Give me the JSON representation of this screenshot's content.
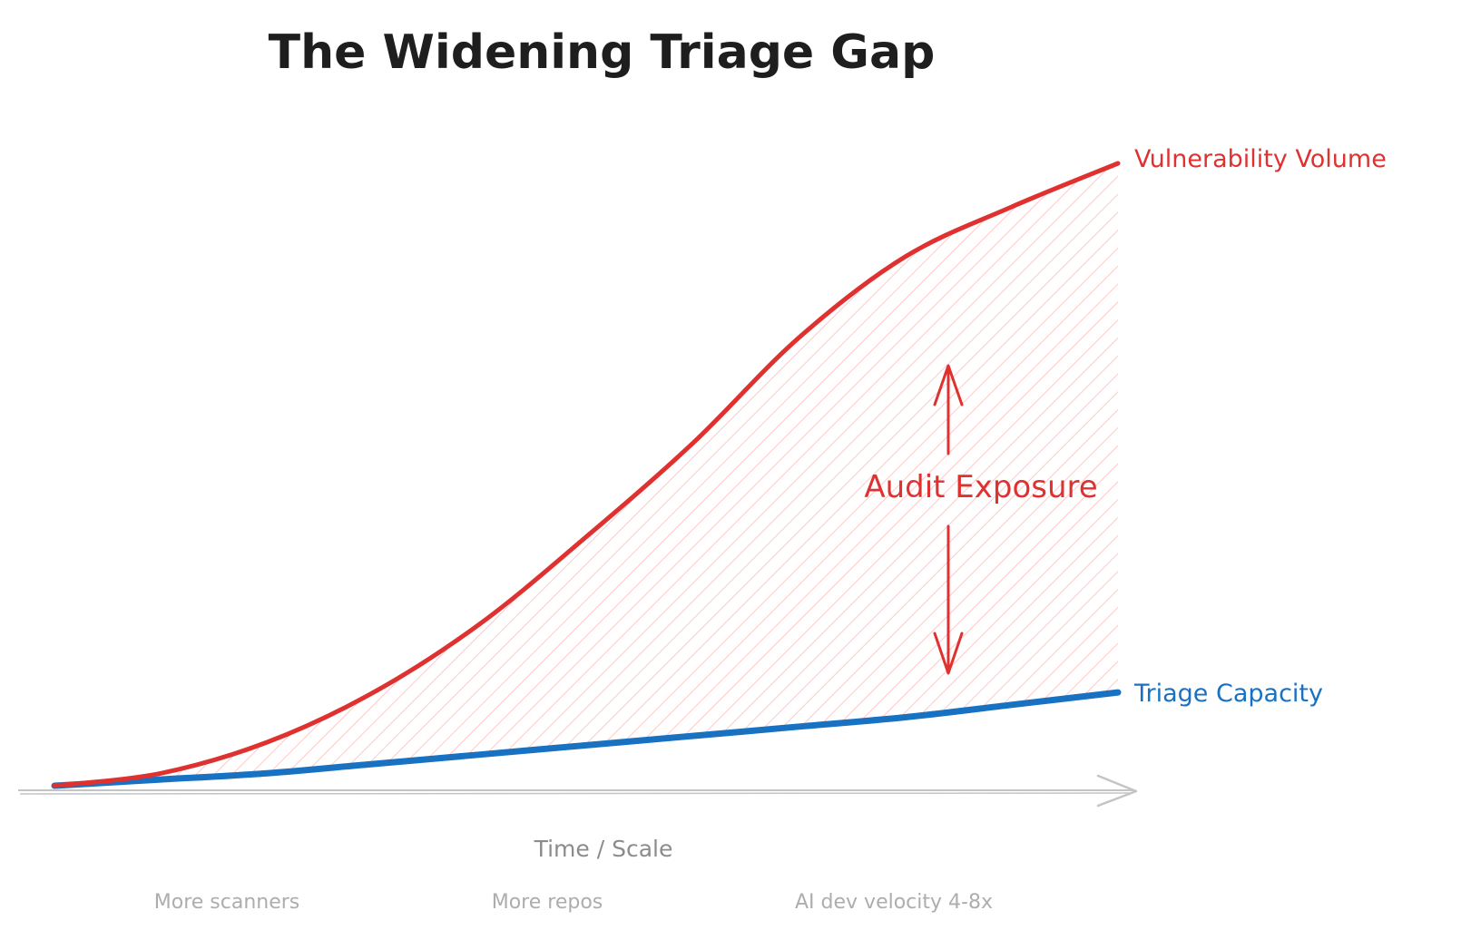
{
  "title": "The Widening Triage Gap",
  "colors": {
    "vulnerability": "#e03131",
    "capacity": "#1971c2",
    "hatch": "#ffc9c9",
    "axis": "#c4c4c4",
    "axis_text": "#8c8c8c",
    "tick_text": "#adadad",
    "title": "#1e1e1e"
  },
  "chart_data": {
    "type": "line",
    "title": "The Widening Triage Gap",
    "xlabel": "Time / Scale",
    "ylabel": "",
    "x": [
      0,
      0.1,
      0.2,
      0.3,
      0.4,
      0.5,
      0.6,
      0.7,
      0.8,
      0.9,
      1.0
    ],
    "xlim": [
      0,
      1
    ],
    "ylim": [
      0,
      1
    ],
    "tick_labels": [
      "More scanners",
      "More repos",
      "AI dev velocity 4-8x"
    ],
    "series": [
      {
        "name": "Vulnerability Volume",
        "color": "#e03131",
        "values": [
          0.0,
          0.02,
          0.07,
          0.15,
          0.26,
          0.4,
          0.55,
          0.72,
          0.85,
          0.93,
          1.0
        ]
      },
      {
        "name": "Triage Capacity",
        "color": "#1971c2",
        "values": [
          0.0,
          0.01,
          0.02,
          0.035,
          0.05,
          0.065,
          0.08,
          0.095,
          0.11,
          0.13,
          0.15
        ]
      }
    ],
    "annotations": [
      {
        "text": "Audit Exposure",
        "type": "double-arrow"
      }
    ],
    "grid": false,
    "legend": "inline-labels"
  }
}
